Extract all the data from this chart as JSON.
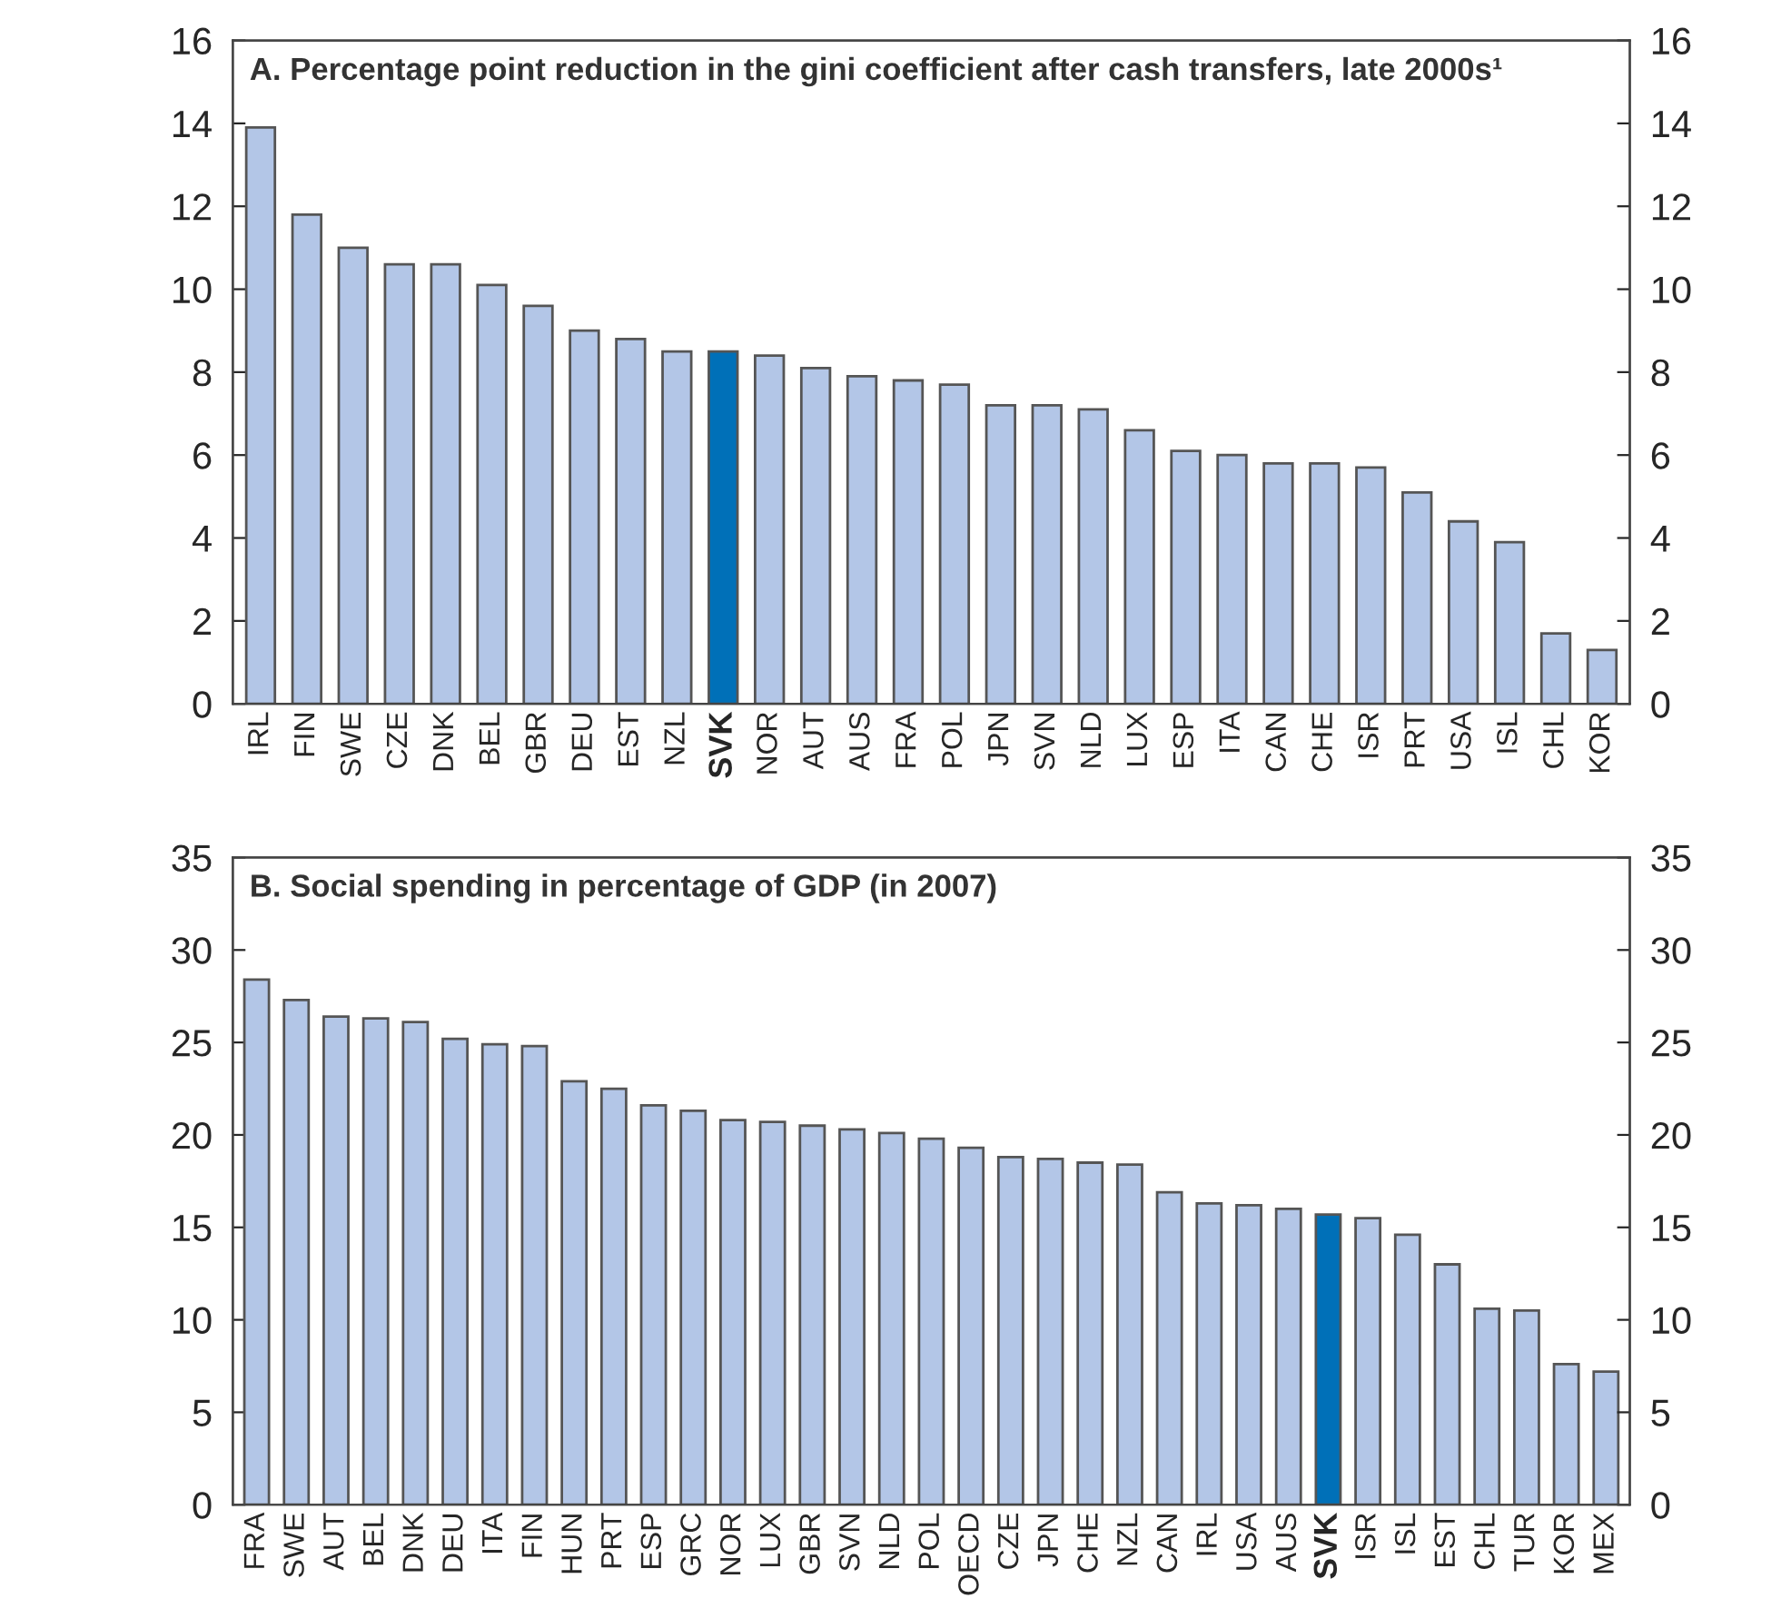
{
  "chart_data": [
    {
      "type": "bar",
      "title": "A. Percentage point reduction in the gini coefficient after cash transfers, late 2000s¹",
      "categories": [
        "IRL",
        "FIN",
        "SWE",
        "CZE",
        "DNK",
        "BEL",
        "GBR",
        "DEU",
        "EST",
        "NZL",
        "SVK",
        "NOR",
        "AUT",
        "AUS",
        "FRA",
        "POL",
        "JPN",
        "SVN",
        "NLD",
        "LUX",
        "ESP",
        "ITA",
        "CAN",
        "CHE",
        "ISR",
        "PRT",
        "USA",
        "ISL",
        "CHL",
        "KOR"
      ],
      "values": [
        13.9,
        11.8,
        11.0,
        10.6,
        10.6,
        10.1,
        9.6,
        9.0,
        8.8,
        8.5,
        8.5,
        8.4,
        8.1,
        7.9,
        7.8,
        7.7,
        7.2,
        7.2,
        7.1,
        6.6,
        6.1,
        6.0,
        5.8,
        5.8,
        5.7,
        5.1,
        4.4,
        3.9,
        1.7,
        1.3
      ],
      "colors": [
        "#b3c6e7",
        "#b3c6e7",
        "#b3c6e7",
        "#b3c6e7",
        "#b3c6e7",
        "#b3c6e7",
        "#b3c6e7",
        "#b3c6e7",
        "#b3c6e7",
        "#b3c6e7",
        "#0070b8",
        "#b3c6e7",
        "#b3c6e7",
        "#b3c6e7",
        "#b3c6e7",
        "#b3c6e7",
        "#b3c6e7",
        "#b3c6e7",
        "#b3c6e7",
        "#b3c6e7",
        "#b3c6e7",
        "#b3c6e7",
        "#b3c6e7",
        "#b3c6e7",
        "#b3c6e7",
        "#b3c6e7",
        "#b3c6e7",
        "#b3c6e7",
        "#b3c6e7",
        "#b3c6e7"
      ],
      "ylim": [
        0,
        16
      ],
      "yticks": [
        0,
        2,
        4,
        6,
        8,
        10,
        12,
        14,
        16
      ],
      "y2lim": [
        0,
        16
      ],
      "y2ticks": [
        0,
        2,
        4,
        6,
        8,
        10,
        12,
        14,
        16
      ],
      "grid": false,
      "legend": false
    },
    {
      "type": "bar",
      "title": "B. Social spending in percentage of GDP (in 2007)",
      "categories": [
        "FRA",
        "SWE",
        "AUT",
        "BEL",
        "DNK",
        "DEU",
        "ITA",
        "FIN",
        "HUN",
        "PRT",
        "ESP",
        "GRC",
        "NOR",
        "LUX",
        "GBR",
        "SVN",
        "NLD",
        "POL",
        "OECD",
        "CZE",
        "JPN",
        "CHE",
        "NZL",
        "CAN",
        "IRL",
        "USA",
        "AUS",
        "SVK",
        "ISR",
        "ISL",
        "EST",
        "CHL",
        "TUR",
        "KOR",
        "MEX"
      ],
      "values": [
        28.4,
        27.3,
        26.4,
        26.3,
        26.1,
        25.2,
        24.9,
        24.8,
        22.9,
        22.5,
        21.6,
        21.3,
        20.8,
        20.7,
        20.5,
        20.3,
        20.1,
        19.8,
        19.3,
        18.8,
        18.7,
        18.5,
        18.4,
        16.9,
        16.3,
        16.2,
        16.0,
        15.7,
        15.5,
        14.6,
        13.0,
        10.6,
        10.5,
        7.6,
        7.2
      ],
      "colors": [
        "#b3c6e7",
        "#b3c6e7",
        "#b3c6e7",
        "#b3c6e7",
        "#b3c6e7",
        "#b3c6e7",
        "#b3c6e7",
        "#b3c6e7",
        "#b3c6e7",
        "#b3c6e7",
        "#b3c6e7",
        "#b3c6e7",
        "#b3c6e7",
        "#b3c6e7",
        "#b3c6e7",
        "#b3c6e7",
        "#b3c6e7",
        "#b3c6e7",
        "#b3c6e7",
        "#b3c6e7",
        "#b3c6e7",
        "#b3c6e7",
        "#b3c6e7",
        "#b3c6e7",
        "#b3c6e7",
        "#b3c6e7",
        "#b3c6e7",
        "#0070b8",
        "#b3c6e7",
        "#b3c6e7",
        "#b3c6e7",
        "#b3c6e7",
        "#b3c6e7",
        "#b3c6e7",
        "#b3c6e7"
      ],
      "ylim": [
        0,
        35
      ],
      "yticks": [
        0,
        5,
        10,
        15,
        20,
        25,
        30,
        35
      ],
      "y2lim": [
        0,
        35
      ],
      "y2ticks": [
        0,
        5,
        10,
        15,
        20,
        25,
        30,
        35
      ],
      "grid": false,
      "legend": false
    }
  ]
}
